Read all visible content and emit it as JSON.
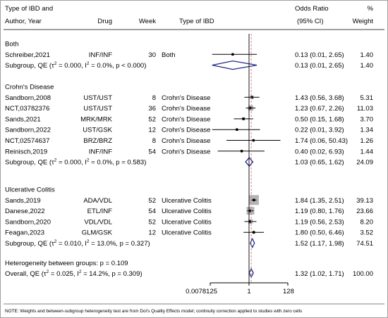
{
  "header": {
    "col_study": [
      "Type of IBD and",
      "Author, Year"
    ],
    "col_drug": "Drug",
    "col_week": "Week",
    "col_type": "Type of IBD",
    "col_or": [
      "Odds Ratio",
      "(95% CI)"
    ],
    "col_weight": [
      "%",
      "Weight"
    ]
  },
  "note": "NOTE: Weights and between-subgroup heterogeneity test are from Doi's Quality Effects model; continuity correction applied to studies with zero cells",
  "heterogeneity": "Heterogeneity between groups: p = 0.109",
  "overall": {
    "label_pre": "Overall, QE (τ",
    "label_mid": " = 0.025, I",
    "label_post": " = 14.2%, p = 0.309)",
    "ci_text": "1.32 (1.02, 1.71)",
    "weight": "100.00"
  },
  "chart_data": {
    "type": "forest",
    "x_scale": "log",
    "x_ticks": [
      "0.0078125",
      "1",
      "128"
    ],
    "x_tick_values": [
      0.0078125,
      1,
      128
    ],
    "xlim": [
      0.0078125,
      128
    ],
    "reference_line": 1,
    "overall_line": 1.32,
    "overall": {
      "or": 1.32,
      "lo": 1.02,
      "hi": 1.71
    },
    "groups": [
      {
        "name": "Both",
        "studies": [
          {
            "study": "Schreiber,2021",
            "drug": "INF/INF",
            "week": "30",
            "type": "Both",
            "or": 0.13,
            "lo": 0.01,
            "hi": 2.65,
            "ci_text": "0.13 (0.01, 2.65)",
            "weight": "1.40"
          }
        ],
        "subgroup": {
          "tau2": "0.000",
          "i2": "0.0",
          "p": "< 0.000",
          "or": 0.13,
          "lo": 0.01,
          "hi": 2.65,
          "ci_text": "0.13 (0.01, 2.65)",
          "weight": "1.40"
        }
      },
      {
        "name": "Crohn's Disease",
        "studies": [
          {
            "study": "Sandborn,2008",
            "drug": "UST/UST",
            "week": "8",
            "type": "Crohn's Disease",
            "or": 1.43,
            "lo": 0.56,
            "hi": 3.68,
            "ci_text": "1.43 (0.56, 3.68)",
            "weight": "5.31"
          },
          {
            "study": "NCT,03782376",
            "drug": "UST/UST",
            "week": "36",
            "type": "Crohn's Disease",
            "or": 1.23,
            "lo": 0.67,
            "hi": 2.26,
            "ci_text": "1.23 (0.67, 2.26)",
            "weight": "11.03"
          },
          {
            "study": "Sands,2021",
            "drug": "MRK/MRK",
            "week": "52",
            "type": "Crohn's Disease",
            "or": 0.5,
            "lo": 0.15,
            "hi": 1.68,
            "ci_text": "0.50 (0.15, 1.68)",
            "weight": "3.70"
          },
          {
            "study": "Sandborn,2022",
            "drug": "UST/GSK",
            "week": "12",
            "type": "Crohn's Disease",
            "or": 0.22,
            "lo": 0.01,
            "hi": 3.92,
            "ci_text": "0.22 (0.01, 3.92)",
            "weight": "1.34"
          },
          {
            "study": "NCT,02574637",
            "drug": "BRZ/BRZ",
            "week": "8",
            "type": "Crohn's Disease",
            "or": 1.74,
            "lo": 0.06,
            "hi": 50.43,
            "ci_text": "1.74 (0.06, 50.43)",
            "weight": "1.26"
          },
          {
            "study": "Reinisch,2019",
            "drug": "INF/INF",
            "week": "54",
            "type": "Crohn's Disease",
            "or": 0.4,
            "lo": 0.02,
            "hi": 6.93,
            "ci_text": "0.40 (0.02, 6.93)",
            "weight": "1.44"
          }
        ],
        "subgroup": {
          "tau2": "0.000",
          "i2": "0.0",
          "p": "0.583",
          "or": 1.03,
          "lo": 0.65,
          "hi": 1.62,
          "ci_text": "1.03 (0.65, 1.62)",
          "weight": "24.09"
        }
      },
      {
        "name": "Ulcerative Colitis",
        "studies": [
          {
            "study": "Sands,2019",
            "drug": "ADA/VDL",
            "week": "52",
            "type": "Ulcerative Colitis",
            "or": 1.84,
            "lo": 1.35,
            "hi": 2.51,
            "ci_text": "1.84 (1.35, 2.51)",
            "weight": "39.13"
          },
          {
            "study": "Danese,2022",
            "drug": "ETL/INF",
            "week": "54",
            "type": "Ulcerative Colitis",
            "or": 1.19,
            "lo": 0.8,
            "hi": 1.76,
            "ci_text": "1.19 (0.80, 1.76)",
            "weight": "23.66"
          },
          {
            "study": "Sandborn,2020",
            "drug": "VDL/VDL",
            "week": "52",
            "type": "Ulcerative Colitis",
            "or": 1.19,
            "lo": 0.56,
            "hi": 2.53,
            "ci_text": "1.19 (0.56, 2.53)",
            "weight": "8.20"
          },
          {
            "study": "Feagan,2023",
            "drug": "GLM/GSK",
            "week": "12",
            "type": "Ulcerative Colitis",
            "or": 1.8,
            "lo": 0.5,
            "hi": 6.46,
            "ci_text": "1.80 (0.50, 6.46)",
            "weight": "3.52"
          }
        ],
        "subgroup": {
          "tau2": "0.010",
          "i2": "13.0",
          "p": "0.327",
          "or": 1.52,
          "lo": 1.17,
          "hi": 1.98,
          "ci_text": "1.52 (1.17, 1.98)",
          "weight": "74.51"
        }
      }
    ]
  },
  "colors": {
    "diamond": "#1f2a8a",
    "weight_box": "#b4b4b4",
    "overall_line": "#d08a8a",
    "axis": "#000000",
    "frame": "#a0a0a0"
  }
}
